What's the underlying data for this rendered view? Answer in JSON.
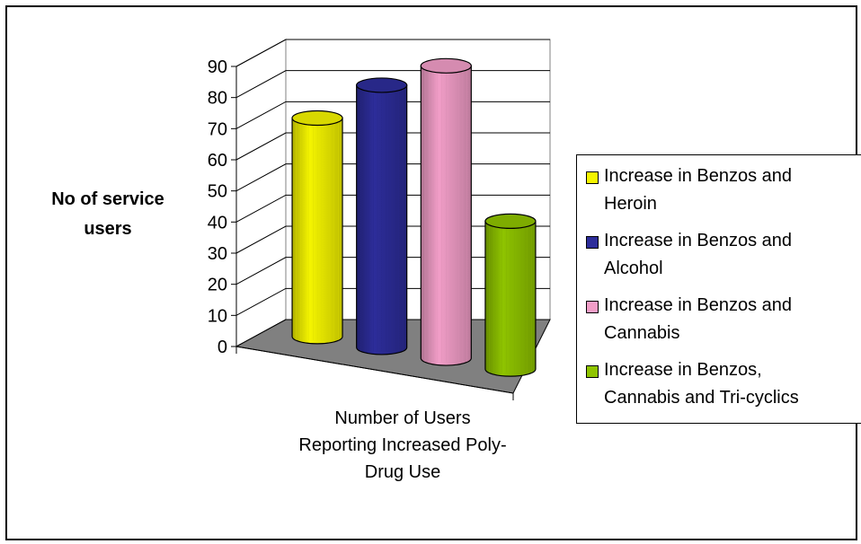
{
  "chart_data": {
    "type": "bar",
    "style": "3d-cylinder",
    "categories": [
      "Number of Users Reporting Increased Poly-Drug Use"
    ],
    "series": [
      {
        "name": "Increase in Benzos and Heroin",
        "values": [
          65
        ],
        "color": "#f5f500"
      },
      {
        "name": "Increase in Benzos and Alcohol",
        "values": [
          78
        ],
        "color": "#2d2d9a"
      },
      {
        "name": "Increase in Benzos and Cannabis",
        "values": [
          87
        ],
        "color": "#f29ec8"
      },
      {
        "name": "Increase in Benzos, Cannabis and Tri-cyclics",
        "values": [
          44
        ],
        "color": "#8fc400"
      }
    ],
    "ylabel": "No of service users",
    "xlabel": "Number of Users Reporting Increased Poly-Drug Use",
    "ylim": [
      0,
      90
    ],
    "yticks": [
      "0",
      "10",
      "20",
      "30",
      "40",
      "50",
      "60",
      "70",
      "80",
      "90"
    ],
    "grid": true,
    "legend": "right"
  },
  "labels": {
    "ylabel_line1": "No of service",
    "ylabel_line2": "users",
    "xlabel_line1": "Number of Users",
    "xlabel_line2": "Reporting Increased Poly-",
    "xlabel_line3": "Drug Use"
  },
  "legend": {
    "items": [
      {
        "line1": "Increase in Benzos and",
        "line2": "Heroin"
      },
      {
        "line1": "Increase in Benzos and",
        "line2": "Alcohol"
      },
      {
        "line1": "Increase in Benzos and",
        "line2": "Cannabis"
      },
      {
        "line1": "Increase in Benzos,",
        "line2": "Cannabis and Tri-cyclics"
      }
    ]
  }
}
